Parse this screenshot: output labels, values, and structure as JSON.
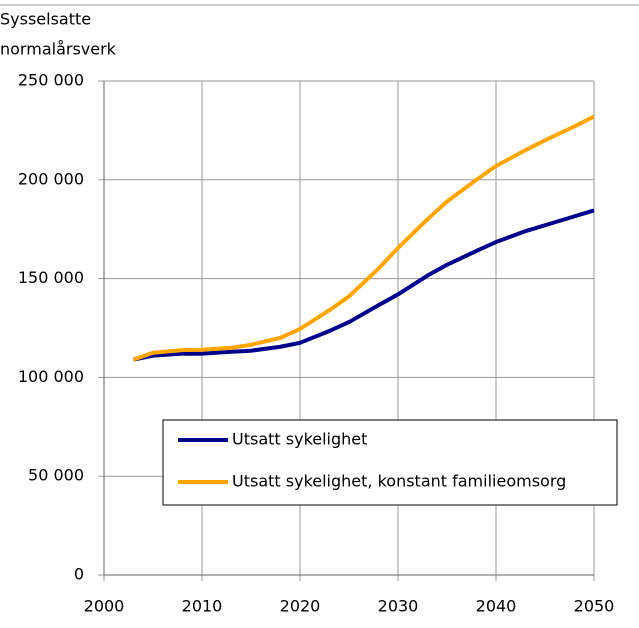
{
  "chart_data": {
    "type": "line",
    "y_label": [
      "Sysselsatte",
      "normalårsverk"
    ],
    "x": [
      2003,
      2005,
      2008,
      2010,
      2013,
      2015,
      2018,
      2020,
      2023,
      2025,
      2028,
      2030,
      2033,
      2035,
      2038,
      2040,
      2043,
      2045,
      2048,
      2050
    ],
    "series": [
      {
        "name": "Utsatt sykelighet",
        "color": "#00008b",
        "values": [
          109000,
          111000,
          112000,
          112000,
          113000,
          113500,
          115500,
          117500,
          123500,
          128000,
          136500,
          142000,
          151500,
          157000,
          164000,
          168500,
          174000,
          177000,
          181500,
          184500
        ]
      },
      {
        "name": "Utsatt sykelighet, konstant familieomsorg",
        "color": "#ffa500",
        "values": [
          109000,
          112500,
          113800,
          114000,
          115000,
          116500,
          120000,
          124500,
          134000,
          141000,
          155000,
          165500,
          180000,
          189000,
          200000,
          207000,
          215000,
          220000,
          227000,
          232000
        ]
      }
    ],
    "xlim": [
      2000,
      2050
    ],
    "xticks": [
      2000,
      2010,
      2020,
      2030,
      2040,
      2050
    ],
    "ylim": [
      0,
      250000
    ],
    "yticks": [
      0,
      {
        "value": 50000,
        "label": "50 000"
      },
      {
        "value": 100000,
        "label": "100 000"
      },
      {
        "value": 150000,
        "label": "150 000"
      },
      {
        "value": 200000,
        "label": "200 000"
      },
      {
        "value": 250000,
        "label": "250 000"
      }
    ],
    "grid": true
  }
}
